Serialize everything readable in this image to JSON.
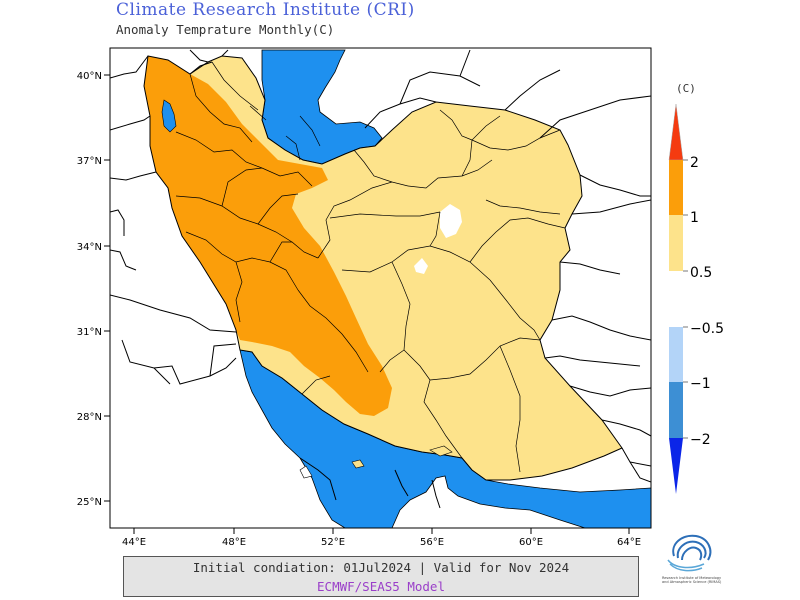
{
  "header": {
    "title": "Climate Research Institute (CRI)",
    "subtitle": "Anomaly Temprature Monthly(C)"
  },
  "map": {
    "region": "Iran",
    "lat_labels": [
      "40°N",
      "37°N",
      "34°N",
      "31°N",
      "28°N",
      "25°N"
    ],
    "lon_labels": [
      "44°E",
      "48°E",
      "52°E",
      "56°E",
      "60°E",
      "64°E"
    ],
    "sea_color": "#1e90ef",
    "anomaly_0_5_1_color": "#fde38b",
    "anomaly_1_2_color": "#fb9e0a"
  },
  "legend": {
    "unit": "(C)",
    "warm_labels": [
      "2",
      "1",
      "0.5"
    ],
    "cold_labels": [
      "−0.5",
      "−1",
      "−2"
    ],
    "colors": {
      "gt2": "#f53b10",
      "1to2": "#fb9e0a",
      "0.5to1": "#fde38b",
      "-0.5to-1": "#b3d4f8",
      "-1to-2": "#3d8fd4",
      "lt-2": "#0b25e8"
    }
  },
  "footer": {
    "line1": "Initial condiation: 01Jul2024 | Valid for Nov 2024",
    "line2": "ECMWF/SEAS5 Model"
  },
  "logo": {
    "icon": "swirl-logo-icon",
    "text": "Research Institute of Meteorology and Atmospheric Science (RIMAS)"
  }
}
